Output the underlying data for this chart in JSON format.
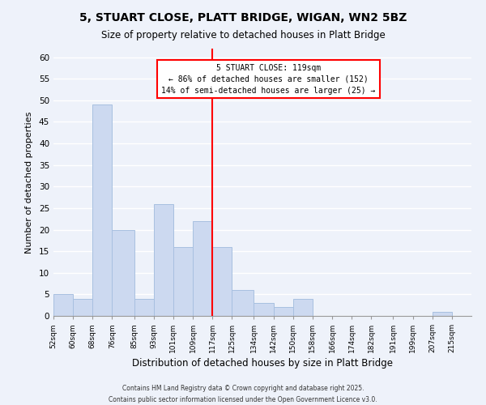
{
  "title": "5, STUART CLOSE, PLATT BRIDGE, WIGAN, WN2 5BZ",
  "subtitle": "Size of property relative to detached houses in Platt Bridge",
  "xlabel": "Distribution of detached houses by size in Platt Bridge",
  "ylabel": "Number of detached properties",
  "bin_labels": [
    "52sqm",
    "60sqm",
    "68sqm",
    "76sqm",
    "85sqm",
    "93sqm",
    "101sqm",
    "109sqm",
    "117sqm",
    "125sqm",
    "134sqm",
    "142sqm",
    "150sqm",
    "158sqm",
    "166sqm",
    "174sqm",
    "182sqm",
    "191sqm",
    "199sqm",
    "207sqm",
    "215sqm"
  ],
  "bin_edges": [
    52,
    60,
    68,
    76,
    85,
    93,
    101,
    109,
    117,
    125,
    134,
    142,
    150,
    158,
    166,
    174,
    182,
    191,
    199,
    207,
    215,
    223
  ],
  "counts": [
    5,
    4,
    49,
    20,
    4,
    26,
    16,
    22,
    16,
    6,
    3,
    2,
    4,
    0,
    0,
    0,
    0,
    0,
    0,
    1,
    0
  ],
  "bar_color": "#ccd9f0",
  "bar_edge_color": "#a8c0e0",
  "red_line_x": 117,
  "annotation_title": "5 STUART CLOSE: 119sqm",
  "annotation_line1": "← 86% of detached houses are smaller (152)",
  "annotation_line2": "14% of semi-detached houses are larger (25) →",
  "ylim": [
    0,
    62
  ],
  "yticks": [
    0,
    5,
    10,
    15,
    20,
    25,
    30,
    35,
    40,
    45,
    50,
    55,
    60
  ],
  "background_color": "#eef2fa",
  "grid_color": "#ffffff",
  "footer1": "Contains HM Land Registry data © Crown copyright and database right 2025.",
  "footer2": "Contains public sector information licensed under the Open Government Licence v3.0."
}
